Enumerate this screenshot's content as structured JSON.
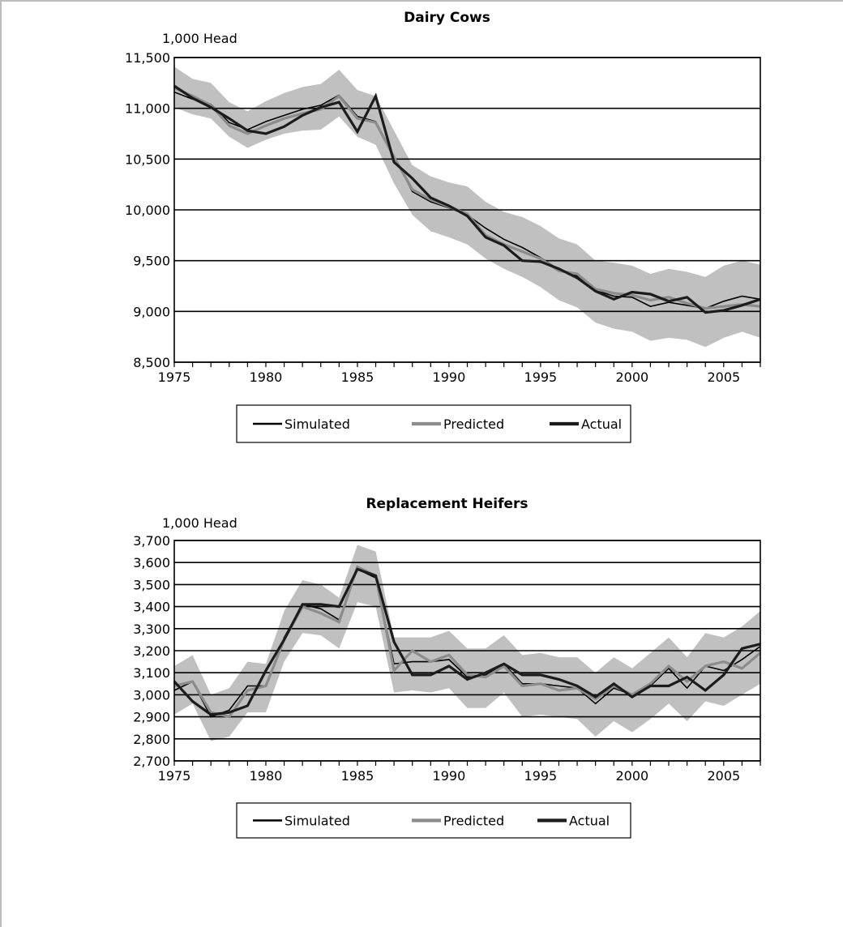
{
  "chart_data": [
    {
      "type": "line",
      "title": "Dairy Cows",
      "ylabel": "1,000 Head",
      "ylim": [
        8500,
        11500
      ],
      "yticks": [
        "8,500",
        "9,000",
        "9,500",
        "10,000",
        "10,500",
        "11,000",
        "11,500"
      ],
      "ytick_values": [
        8500,
        9000,
        9500,
        10000,
        10500,
        11000,
        11500
      ],
      "xlim": [
        1975,
        2007
      ],
      "xticks": [
        "1975",
        "1980",
        "1985",
        "1990",
        "1995",
        "2000",
        "2005"
      ],
      "xtick_values": [
        1975,
        1980,
        1985,
        1990,
        1995,
        2000,
        2005
      ],
      "grid": true,
      "legend_placement": "bottom",
      "x": [
        1975,
        1976,
        1977,
        1978,
        1979,
        1980,
        1981,
        1982,
        1983,
        1984,
        1985,
        1986,
        1987,
        1988,
        1989,
        1990,
        1991,
        1992,
        1993,
        1994,
        1995,
        1996,
        1997,
        1998,
        1999,
        2000,
        2001,
        2002,
        2003,
        2004,
        2005,
        2006,
        2007
      ],
      "band": {
        "color": "#c0c0c0",
        "lower": [
          11010,
          10940,
          10900,
          10720,
          10610,
          10690,
          10750,
          10780,
          10790,
          10920,
          10720,
          10640,
          10260,
          9950,
          9790,
          9730,
          9660,
          9520,
          9420,
          9340,
          9240,
          9110,
          9040,
          8890,
          8830,
          8800,
          8710,
          8740,
          8720,
          8650,
          8740,
          8800,
          8740
        ],
        "upper": [
          11410,
          11290,
          11250,
          11060,
          10970,
          11070,
          11150,
          11210,
          11240,
          11380,
          11180,
          11120,
          10780,
          10440,
          10330,
          10270,
          10230,
          10080,
          9980,
          9930,
          9840,
          9720,
          9660,
          9500,
          9480,
          9450,
          9370,
          9420,
          9390,
          9340,
          9450,
          9500,
          9460
        ]
      },
      "series": [
        {
          "name": "Simulated",
          "color": "#000000",
          "width": 1.6,
          "values": [
            11160,
            11090,
            11040,
            10860,
            10790,
            10870,
            10930,
            10990,
            11030,
            11130,
            10920,
            10870,
            10530,
            10180,
            10080,
            10020,
            9950,
            9820,
            9710,
            9630,
            9530,
            9410,
            9350,
            9210,
            9150,
            9140,
            9050,
            9090,
            9060,
            9030,
            9100,
            9150,
            9120
          ]
        },
        {
          "name": "Predicted",
          "color": "#8c8c8c",
          "width": 3.2,
          "values": [
            11200,
            11120,
            11030,
            10830,
            10750,
            10830,
            10900,
            10950,
            10990,
            11120,
            10900,
            10860,
            10520,
            10200,
            10100,
            10030,
            9960,
            9750,
            9660,
            9590,
            9520,
            9400,
            9370,
            9220,
            9180,
            9160,
            9110,
            9140,
            9080,
            9030,
            9050,
            9070,
            9050
          ]
        },
        {
          "name": "Actual",
          "color": "#1c1c1c",
          "width": 3.2,
          "values": [
            11220,
            11100,
            11010,
            10900,
            10780,
            10750,
            10820,
            10930,
            11010,
            11060,
            10770,
            11120,
            10470,
            10310,
            10120,
            10040,
            9940,
            9730,
            9650,
            9500,
            9490,
            9420,
            9330,
            9200,
            9120,
            9190,
            9170,
            9100,
            9140,
            8990,
            9010,
            9060,
            9120
          ]
        }
      ]
    },
    {
      "type": "line",
      "title": "Replacement Heifers",
      "ylabel": "1,000 Head",
      "ylim": [
        2700,
        3700
      ],
      "yticks": [
        "2,700",
        "2,800",
        "2,900",
        "3,000",
        "3,100",
        "3,200",
        "3,300",
        "3,400",
        "3,500",
        "3,600",
        "3,700"
      ],
      "ytick_values": [
        2700,
        2800,
        2900,
        3000,
        3100,
        3200,
        3300,
        3400,
        3500,
        3600,
        3700
      ],
      "xlim": [
        1975,
        2007
      ],
      "xticks": [
        "1975",
        "1980",
        "1985",
        "1990",
        "1995",
        "2000",
        "2005"
      ],
      "xtick_values": [
        1975,
        1980,
        1985,
        1990,
        1995,
        2000,
        2005
      ],
      "grid": true,
      "legend_placement": "bottom",
      "x": [
        1975,
        1976,
        1977,
        1978,
        1979,
        1980,
        1981,
        1982,
        1983,
        1984,
        1985,
        1986,
        1987,
        1988,
        1989,
        1990,
        1991,
        1992,
        1993,
        1994,
        1995,
        1996,
        1997,
        1998,
        1999,
        2000,
        2001,
        2002,
        2003,
        2004,
        2005,
        2006,
        2007
      ],
      "band": {
        "color": "#c0c0c0",
        "lower": [
          2910,
          2960,
          2790,
          2810,
          2920,
          2920,
          3150,
          3280,
          3270,
          3210,
          3420,
          3400,
          3010,
          3020,
          3010,
          3030,
          2940,
          2940,
          3010,
          2900,
          2910,
          2900,
          2890,
          2810,
          2880,
          2830,
          2890,
          2960,
          2880,
          2970,
          2950,
          3000,
          3050
        ],
        "upper": [
          3130,
          3180,
          3000,
          3030,
          3150,
          3140,
          3380,
          3520,
          3500,
          3440,
          3680,
          3650,
          3260,
          3260,
          3260,
          3290,
          3210,
          3210,
          3270,
          3180,
          3190,
          3170,
          3170,
          3100,
          3170,
          3120,
          3190,
          3260,
          3170,
          3280,
          3260,
          3310,
          3380
        ]
      },
      "series": [
        {
          "name": "Simulated",
          "color": "#000000",
          "width": 1.6,
          "values": [
            3020,
            3060,
            2900,
            2930,
            3040,
            3040,
            3260,
            3410,
            3390,
            3340,
            3570,
            3530,
            3140,
            3150,
            3150,
            3160,
            3080,
            3090,
            3140,
            3050,
            3050,
            3040,
            3030,
            2960,
            3030,
            3000,
            3040,
            3120,
            3030,
            3130,
            3110,
            3160,
            3220
          ]
        },
        {
          "name": "Predicted",
          "color": "#8c8c8c",
          "width": 3.2,
          "values": [
            3040,
            3060,
            2920,
            2900,
            3020,
            3040,
            3250,
            3400,
            3370,
            3330,
            3580,
            3540,
            3110,
            3200,
            3150,
            3180,
            3090,
            3080,
            3130,
            3040,
            3050,
            3020,
            3030,
            2980,
            3040,
            3000,
            3050,
            3130,
            3060,
            3130,
            3150,
            3120,
            3190
          ]
        },
        {
          "name": "Actual",
          "color": "#1c1c1c",
          "width": 3.2,
          "values": [
            3060,
            2970,
            2910,
            2920,
            2950,
            3110,
            3250,
            3410,
            3410,
            3400,
            3570,
            3540,
            3240,
            3090,
            3090,
            3130,
            3070,
            3100,
            3140,
            3090,
            3090,
            3070,
            3040,
            2990,
            3050,
            2990,
            3040,
            3040,
            3080,
            3020,
            3090,
            3210,
            3230
          ]
        }
      ]
    }
  ]
}
